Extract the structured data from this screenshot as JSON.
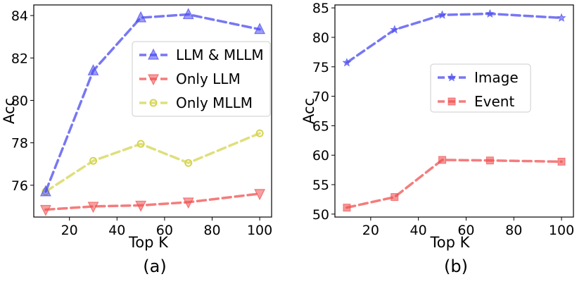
{
  "chart_data": [
    {
      "type": "line",
      "caption": "(a)",
      "xlabel": "Top K",
      "ylabel": "Acc",
      "xlim": [
        5,
        105
      ],
      "ylim": [
        74.5,
        84.5
      ],
      "xticks": [
        20,
        40,
        60,
        80,
        100
      ],
      "yticks": [
        76,
        78,
        80,
        82,
        84
      ],
      "x": [
        10,
        30,
        50,
        70,
        100
      ],
      "legend_loc": "center-right",
      "series": [
        {
          "name": "LLM & MLLM",
          "values": [
            75.7,
            81.4,
            83.9,
            84.05,
            83.35
          ],
          "color": "#4a4af0",
          "marker": "triangle-up"
        },
        {
          "name": "Only LLM",
          "values": [
            74.85,
            75.0,
            75.05,
            75.2,
            75.6
          ],
          "color": "#f05050",
          "marker": "triangle-down"
        },
        {
          "name": "Only MLLM",
          "values": [
            75.7,
            77.15,
            77.95,
            77.05,
            78.45
          ],
          "color": "#d4d450",
          "marker": "circle-open"
        }
      ]
    },
    {
      "type": "line",
      "caption": "(b)",
      "xlabel": "Top K",
      "ylabel": "Acc",
      "xlim": [
        5,
        105
      ],
      "ylim": [
        49.5,
        85.5
      ],
      "xticks": [
        20,
        40,
        60,
        80,
        100
      ],
      "yticks": [
        50,
        55,
        60,
        65,
        70,
        75,
        80,
        85
      ],
      "x": [
        10,
        30,
        50,
        70,
        100
      ],
      "legend_loc": "center",
      "series": [
        {
          "name": "Image",
          "values": [
            75.7,
            81.3,
            83.8,
            84.0,
            83.3
          ],
          "color": "#4a4af0",
          "marker": "star"
        },
        {
          "name": "Event",
          "values": [
            51.1,
            52.9,
            59.2,
            59.1,
            58.9
          ],
          "color": "#f05050",
          "marker": "square"
        }
      ]
    }
  ]
}
